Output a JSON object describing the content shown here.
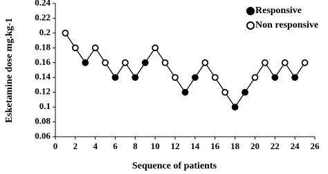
{
  "chart_data": {
    "type": "scatter",
    "xlabel": "Sequence of patients",
    "ylabel": "Esketamine dose  mg.kg-1",
    "x": [
      1,
      2,
      3,
      4,
      5,
      6,
      7,
      8,
      9,
      10,
      11,
      12,
      13,
      14,
      15,
      16,
      17,
      18,
      19,
      20,
      21,
      22,
      23,
      24,
      25
    ],
    "series": [
      {
        "name": "Responsive",
        "color": "#000000",
        "marker": "filled",
        "values": [
          null,
          null,
          0.16,
          null,
          null,
          0.14,
          null,
          0.14,
          0.16,
          null,
          null,
          null,
          0.12,
          0.14,
          null,
          null,
          null,
          0.1,
          0.12,
          null,
          null,
          0.14,
          null,
          0.14,
          null
        ]
      },
      {
        "name": "Non responsive",
        "color": "#000000",
        "marker": "open",
        "values": [
          0.2,
          0.18,
          null,
          0.18,
          0.16,
          null,
          0.16,
          null,
          null,
          0.18,
          0.16,
          0.14,
          null,
          null,
          0.16,
          0.14,
          0.12,
          null,
          null,
          0.14,
          0.16,
          null,
          0.16,
          null,
          0.16
        ]
      }
    ],
    "connect_points": true,
    "xlim": [
      0,
      26
    ],
    "xticks": [
      0,
      2,
      4,
      6,
      8,
      10,
      12,
      14,
      16,
      18,
      20,
      22,
      24,
      26
    ],
    "ylim": [
      0.06,
      0.24
    ],
    "yticks": [
      0.06,
      0.08,
      0.1,
      0.12,
      0.14,
      0.16,
      0.18,
      0.2,
      0.22,
      0.24
    ],
    "legend": "top-right"
  }
}
